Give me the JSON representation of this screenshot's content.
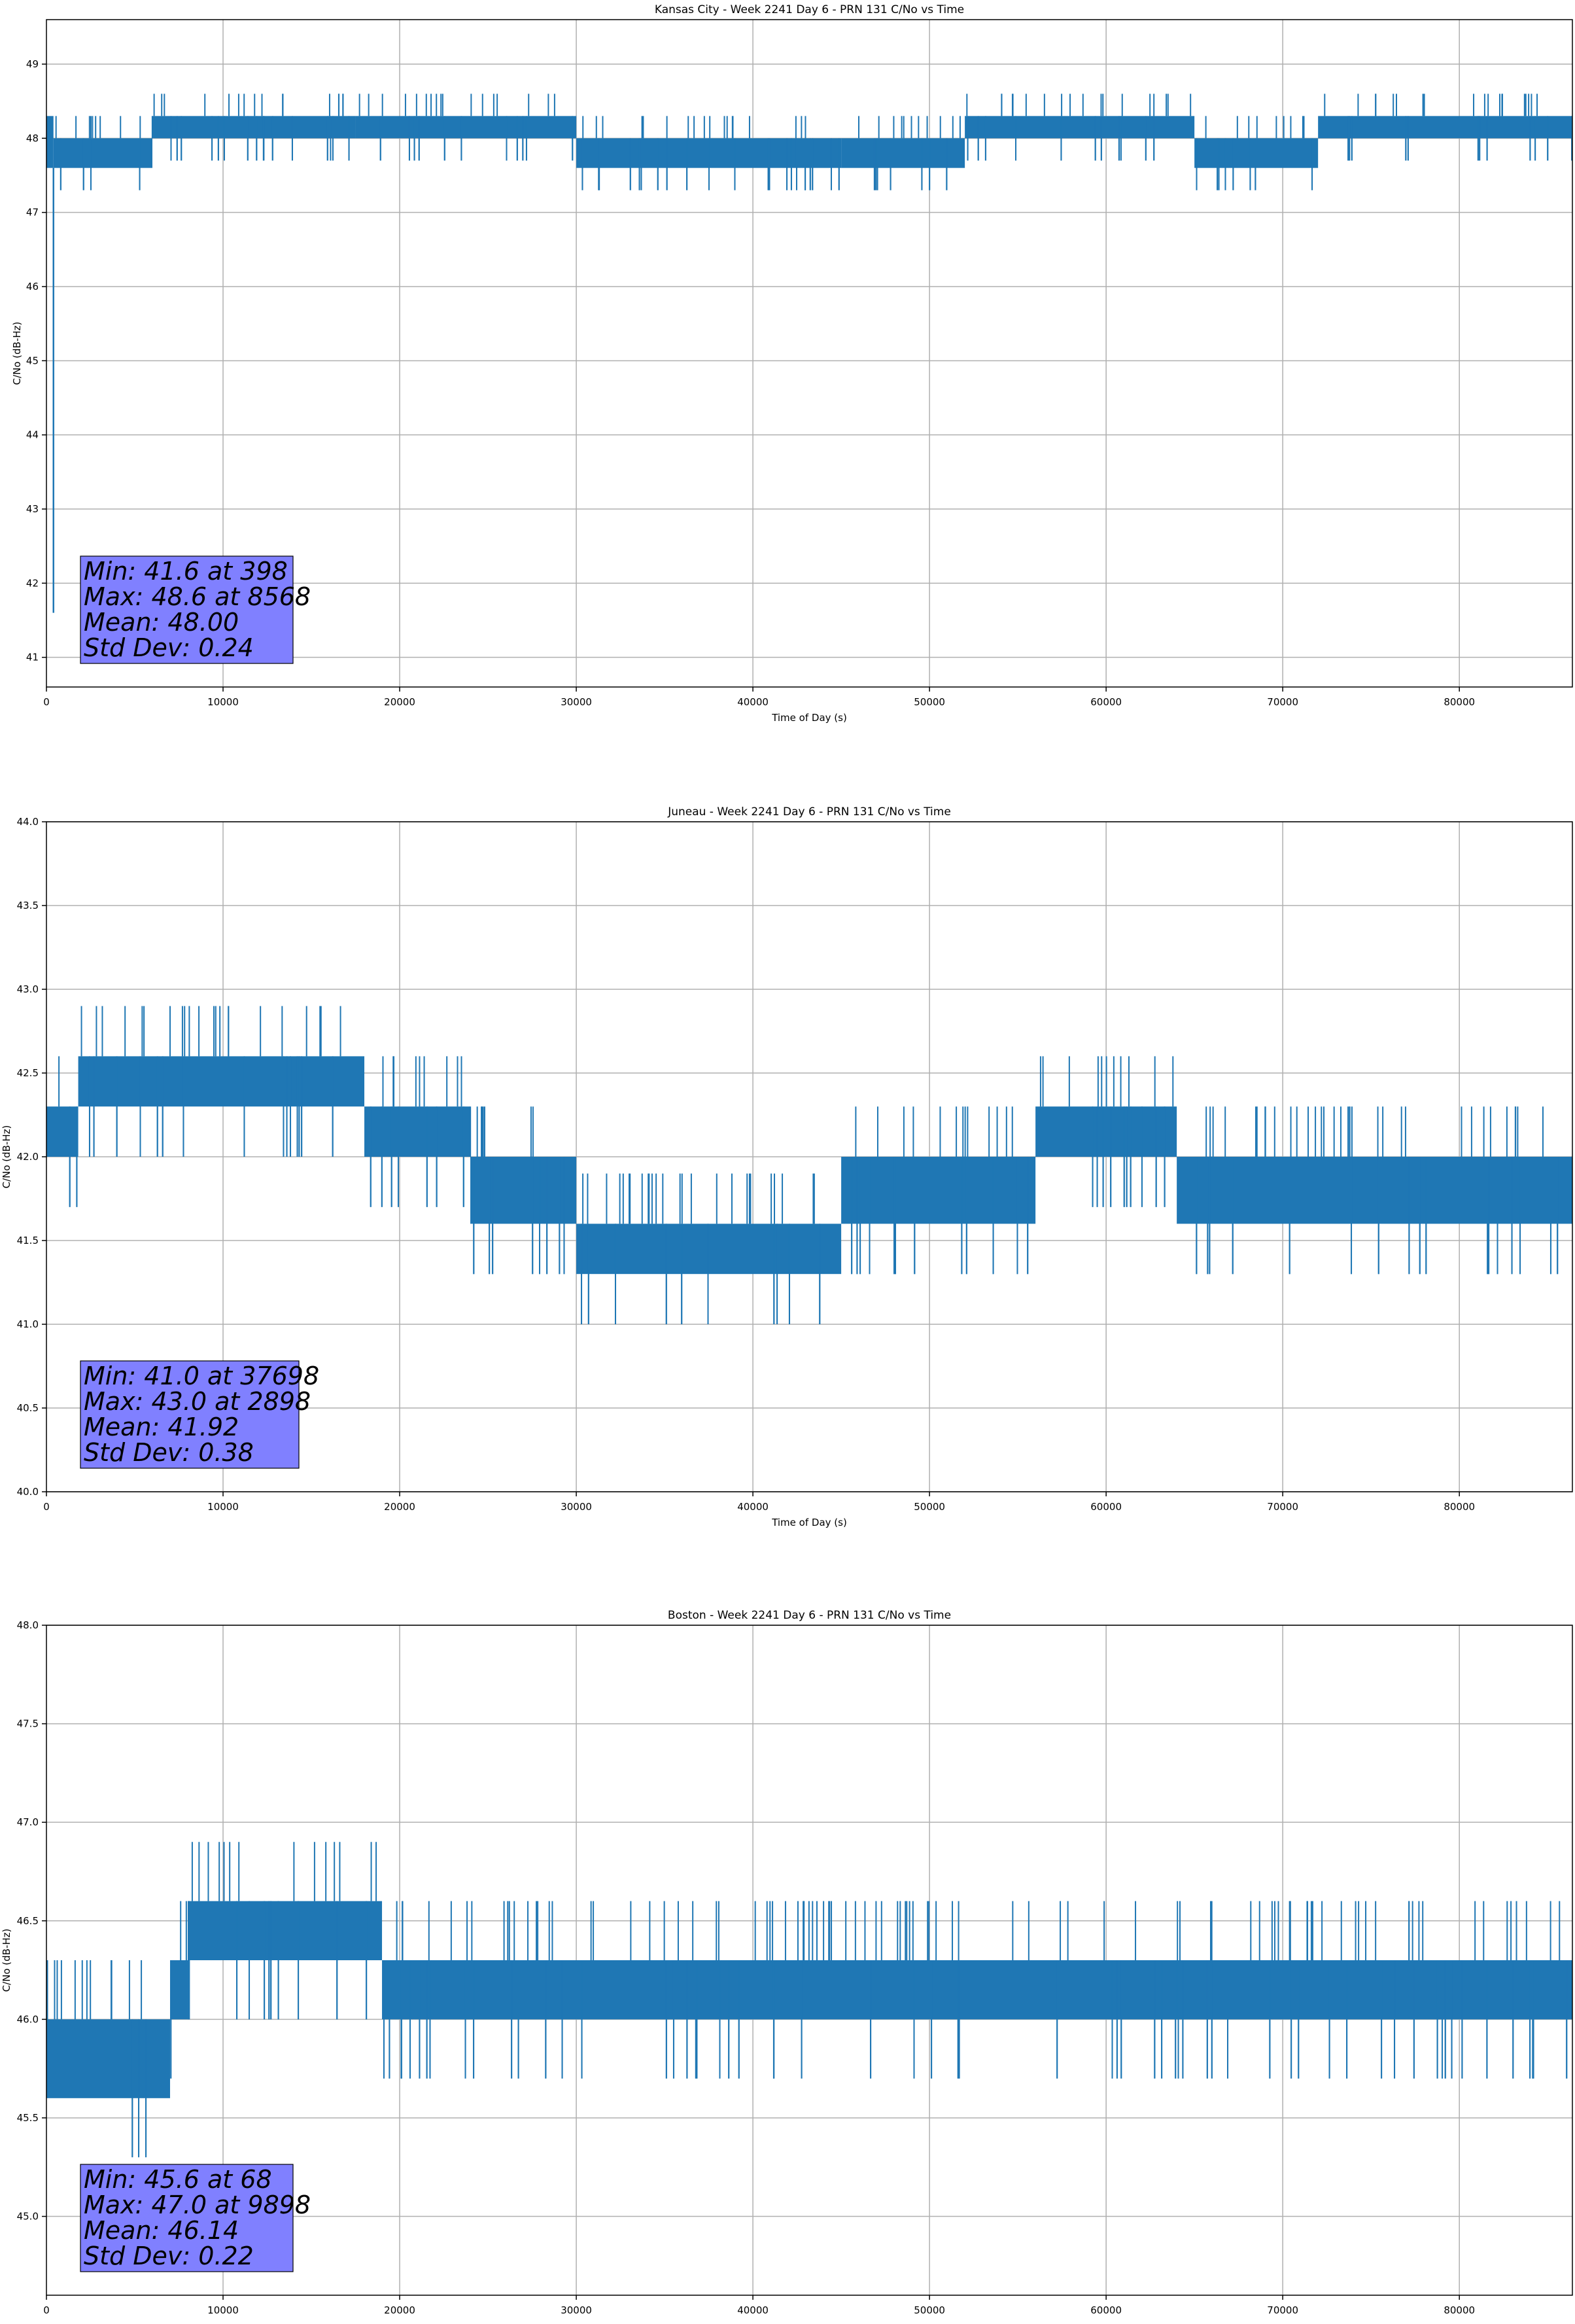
{
  "chart_data": [
    {
      "type": "line",
      "title": "Kansas City - Week 2241 Day 6 - PRN 131 C/No vs Time",
      "xlabel": "Time of Day (s)",
      "ylabel": "C/No (dB-Hz)",
      "xlim": [
        0,
        86400
      ],
      "ylim": [
        40.6,
        49.6
      ],
      "xticks": [
        0,
        10000,
        20000,
        30000,
        40000,
        50000,
        60000,
        70000,
        80000
      ],
      "yticks": [
        41,
        42,
        43,
        44,
        45,
        46,
        47,
        48,
        49
      ],
      "ytick_labels": [
        "41",
        "42",
        "43",
        "44",
        "45",
        "46",
        "47",
        "48",
        "49"
      ],
      "grid": true,
      "line_color": "#1f77b4",
      "band_segments": [
        {
          "x": [
            0,
            398
          ],
          "y_low": 47.6,
          "y_high": 48.3
        },
        {
          "x": [
            398,
            6000
          ],
          "y_low": 47.6,
          "y_high": 48.0
        },
        {
          "x": [
            6000,
            17500
          ],
          "y_low": 48.0,
          "y_high": 48.3
        },
        {
          "x": [
            17500,
            30000
          ],
          "y_low": 48.0,
          "y_high": 48.3
        },
        {
          "x": [
            30000,
            45000
          ],
          "y_low": 47.6,
          "y_high": 48.0
        },
        {
          "x": [
            45000,
            52000
          ],
          "y_low": 47.6,
          "y_high": 48.0
        },
        {
          "x": [
            52000,
            65000
          ],
          "y_low": 48.0,
          "y_high": 48.3
        },
        {
          "x": [
            65000,
            72000
          ],
          "y_low": 47.6,
          "y_high": 48.0
        },
        {
          "x": [
            72000,
            86400
          ],
          "y_low": 48.0,
          "y_high": 48.3
        }
      ],
      "dips": [
        {
          "x": 398,
          "y": 41.6
        }
      ],
      "annotation": {
        "lines": [
          "Min: 41.6 at 398",
          "Max: 48.6 at 8568",
          "Mean: 48.00",
          "Std Dev: 0.24"
        ],
        "box_color": "#8080ff"
      }
    },
    {
      "type": "line",
      "title": "Juneau - Week 2241 Day 6 - PRN 131 C/No vs Time",
      "xlabel": "Time of Day (s)",
      "ylabel": "C/No (dB-Hz)",
      "xlim": [
        0,
        86400
      ],
      "ylim": [
        40.0,
        44.0
      ],
      "xticks": [
        0,
        10000,
        20000,
        30000,
        40000,
        50000,
        60000,
        70000,
        80000
      ],
      "yticks": [
        40.0,
        40.5,
        41.0,
        41.5,
        42.0,
        42.5,
        43.0,
        43.5,
        44.0
      ],
      "ytick_labels": [
        "40.0",
        "40.5",
        "41.0",
        "41.5",
        "42.0",
        "42.5",
        "43.0",
        "43.5",
        "44.0"
      ],
      "grid": true,
      "line_color": "#1f77b4",
      "band_segments": [
        {
          "x": [
            0,
            1800
          ],
          "y_low": 42.0,
          "y_high": 42.3
        },
        {
          "x": [
            1800,
            18000
          ],
          "y_low": 42.3,
          "y_high": 42.6
        },
        {
          "x": [
            18000,
            24000
          ],
          "y_low": 42.0,
          "y_high": 42.3
        },
        {
          "x": [
            24000,
            30000
          ],
          "y_low": 41.6,
          "y_high": 42.0
        },
        {
          "x": [
            30000,
            45000
          ],
          "y_low": 41.3,
          "y_high": 41.6
        },
        {
          "x": [
            45000,
            56000
          ],
          "y_low": 41.6,
          "y_high": 42.0
        },
        {
          "x": [
            56000,
            64000
          ],
          "y_low": 42.0,
          "y_high": 42.3
        },
        {
          "x": [
            64000,
            86400
          ],
          "y_low": 41.6,
          "y_high": 42.0
        }
      ],
      "dips": [],
      "annotation": {
        "lines": [
          "Min: 41.0 at 37698",
          "Max: 43.0 at 2898",
          "Mean: 41.92",
          "Std Dev: 0.38"
        ],
        "box_color": "#8080ff"
      }
    },
    {
      "type": "line",
      "title": "Boston - Week 2241 Day 6 - PRN 131 C/No vs Time",
      "xlabel": "Time of Day (s)",
      "ylabel": "C/No (dB-Hz)",
      "xlim": [
        0,
        86400
      ],
      "ylim": [
        44.6,
        48.0
      ],
      "xticks": [
        0,
        10000,
        20000,
        30000,
        40000,
        50000,
        60000,
        70000,
        80000
      ],
      "yticks": [
        45.0,
        45.5,
        46.0,
        46.5,
        47.0,
        47.5,
        48.0
      ],
      "ytick_labels": [
        "45.0",
        "45.5",
        "46.0",
        "46.5",
        "47.0",
        "47.5",
        "48.0"
      ],
      "grid": true,
      "line_color": "#1f77b4",
      "band_segments": [
        {
          "x": [
            0,
            7000
          ],
          "y_low": 45.6,
          "y_high": 46.0
        },
        {
          "x": [
            7000,
            8000
          ],
          "y_low": 46.0,
          "y_high": 46.3
        },
        {
          "x": [
            8000,
            19000
          ],
          "y_low": 46.3,
          "y_high": 46.6
        },
        {
          "x": [
            19000,
            86400
          ],
          "y_low": 46.0,
          "y_high": 46.3
        }
      ],
      "dips": [],
      "annotation": {
        "lines": [
          "Min: 45.6 at 68",
          "Max: 47.0 at 9898",
          "Mean: 46.14",
          "Std Dev: 0.22"
        ],
        "box_color": "#8080ff"
      }
    }
  ]
}
